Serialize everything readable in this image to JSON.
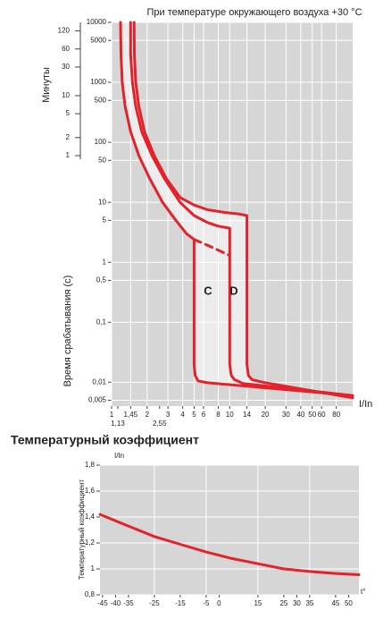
{
  "chart_data": [
    {
      "type": "line",
      "title": "При температуре окружающего воздуха +30 °C",
      "ylabel": "Время срабатывания (с)",
      "y2label": "Минуты",
      "xlabel": "I/In",
      "xlog": true,
      "ylog": true,
      "grid": true,
      "plot_color": "#d6d6d6",
      "zone_color": "#ececec",
      "xlim": [
        1,
        110
      ],
      "ylim": [
        0.004,
        10000
      ],
      "y2lim": [
        6.67e-05,
        166.7
      ],
      "xticks": [
        1,
        {
          "value": 1.45,
          "label": "1,45"
        },
        2,
        3,
        4,
        5,
        6,
        8,
        10,
        14,
        20,
        30,
        40,
        50,
        60,
        80
      ],
      "xticks2": [
        {
          "value": 1.13,
          "label": "1,13"
        },
        {
          "value": 2.55,
          "label": "2,55"
        }
      ],
      "yticks": [
        10000,
        5000,
        1000,
        500,
        100,
        50,
        10,
        5,
        1,
        {
          "value": 0.5,
          "label": "0,5"
        },
        {
          "value": 0.1,
          "label": "0,1"
        },
        {
          "value": 0.01,
          "label": "0,01"
        },
        {
          "value": 0.005,
          "label": "0,005"
        }
      ],
      "y2ticks": [
        120,
        60,
        30,
        10,
        5,
        2,
        1
      ],
      "annotations": [
        "C",
        "D"
      ],
      "series": [
        {
          "color": "#e3222b",
          "dash": false,
          "x": [
            1.19,
            1.2,
            1.23,
            1.3,
            1.45,
            1.7,
            2.1,
            2.7,
            3.5,
            4.3,
            5,
            5,
            5.1,
            5.4,
            6.5,
            110
          ],
          "y": [
            10000,
            3000,
            1000,
            400,
            150,
            60,
            25,
            10,
            5,
            3,
            2.4,
            0.02,
            0.013,
            0.0105,
            0.0098,
            0.006
          ]
        },
        {
          "color": "#e3222b",
          "dash": true,
          "x": [
            5,
            7,
            10
          ],
          "y": [
            2.4,
            1.8,
            1.3
          ]
        },
        {
          "color": "#e3222b",
          "dash": false,
          "x": [
            1.45,
            1.45,
            1.5,
            1.6,
            1.8,
            2.2,
            2.8,
            3.8,
            5,
            6.5,
            8,
            10,
            10,
            10.3,
            11,
            13,
            110
          ],
          "y": [
            10000,
            3000,
            1000,
            400,
            150,
            60,
            25,
            10,
            6,
            4.6,
            4,
            3.7,
            0.02,
            0.013,
            0.011,
            0.0095,
            0.006
          ]
        },
        {
          "color": "#e3222b",
          "dash": false,
          "x": [
            1.55,
            1.56,
            1.6,
            1.7,
            1.9,
            2.3,
            2.9,
            3.8,
            5,
            6.5,
            9,
            12,
            14,
            14,
            14.4,
            15.5,
            20,
            110
          ],
          "y": [
            10000,
            3000,
            1000,
            400,
            150,
            60,
            25,
            12,
            9,
            7.5,
            6.8,
            6.4,
            6,
            0.02,
            0.013,
            0.011,
            0.0098,
            0.0055
          ]
        }
      ]
    },
    {
      "type": "line",
      "title": "Температурный коэффициент",
      "ylabel": "Температурный коэффициент",
      "yunit": "I/In",
      "xlabel": "t°",
      "grid": true,
      "plot_color": "#d6d6d6",
      "xlim": [
        -46,
        54
      ],
      "ylim": [
        0.8,
        1.8
      ],
      "xticks": [
        -45,
        -40,
        -35,
        -25,
        -15,
        -5,
        0,
        15,
        25,
        30,
        35,
        45,
        50
      ],
      "xgrid": [
        -25,
        -5,
        15,
        35
      ],
      "yticks": [
        {
          "value": 0.8,
          "label": "0,8"
        },
        1,
        {
          "value": 1.2,
          "label": "1,2"
        },
        {
          "value": 1.4,
          "label": "1,4"
        },
        {
          "value": 1.6,
          "label": "1,6"
        },
        {
          "value": 1.8,
          "label": "1,8"
        }
      ],
      "series": [
        {
          "color": "#e3222b",
          "dash": false,
          "x": [
            -46,
            -35,
            -25,
            -15,
            -5,
            5,
            15,
            25,
            35,
            45,
            54
          ],
          "y": [
            1.42,
            1.33,
            1.25,
            1.19,
            1.13,
            1.08,
            1.04,
            1.0,
            0.98,
            0.965,
            0.955
          ]
        }
      ]
    }
  ]
}
